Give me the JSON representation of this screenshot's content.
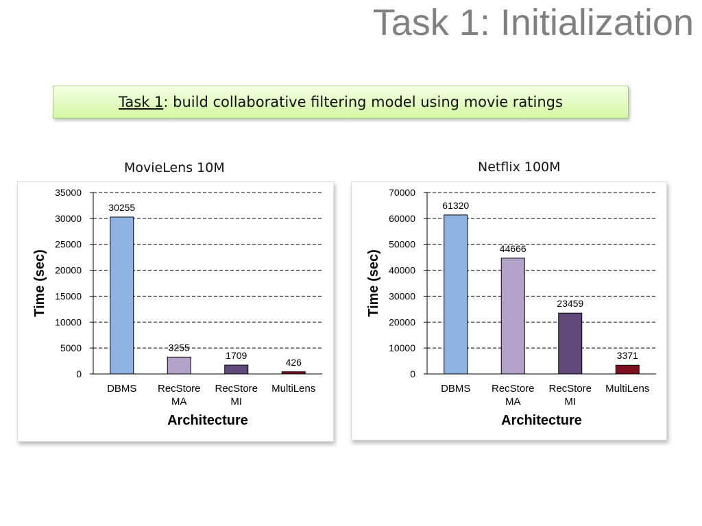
{
  "slide": {
    "title": "Task 1: Initialization",
    "task_label": "Task 1",
    "task_text": ": build collaborative filtering model using movie ratings"
  },
  "chart_data": [
    {
      "type": "bar",
      "title": "MovieLens 10M",
      "xlabel": "Architecture",
      "ylabel": "Time (sec)",
      "categories": [
        [
          "DBMS"
        ],
        [
          "RecStore",
          "MA"
        ],
        [
          "RecStore",
          "MI"
        ],
        [
          "MultiLens"
        ]
      ],
      "values": [
        30255,
        3255,
        1709,
        426
      ],
      "bar_colors": [
        "#8db3e2",
        "#b3a2c7",
        "#604a7b",
        "#7f0e1f"
      ],
      "yticks": [
        0,
        5000,
        10000,
        15000,
        20000,
        25000,
        30000,
        35000
      ],
      "ylim": [
        0,
        35000
      ],
      "grid": "dashed horizontal"
    },
    {
      "type": "bar",
      "title": "Netflix 100M",
      "xlabel": "Architecture",
      "ylabel": "Time (sec)",
      "categories": [
        [
          "DBMS"
        ],
        [
          "RecStore",
          "MA"
        ],
        [
          "RecStore",
          "MI"
        ],
        [
          "MultiLens"
        ]
      ],
      "values": [
        61320,
        44666,
        23459,
        3371
      ],
      "bar_colors": [
        "#8db3e2",
        "#b3a2c7",
        "#604a7b",
        "#7f0e1f"
      ],
      "yticks": [
        0,
        10000,
        20000,
        30000,
        40000,
        50000,
        60000,
        70000
      ],
      "ylim": [
        0,
        70000
      ],
      "grid": "dashed horizontal"
    }
  ]
}
